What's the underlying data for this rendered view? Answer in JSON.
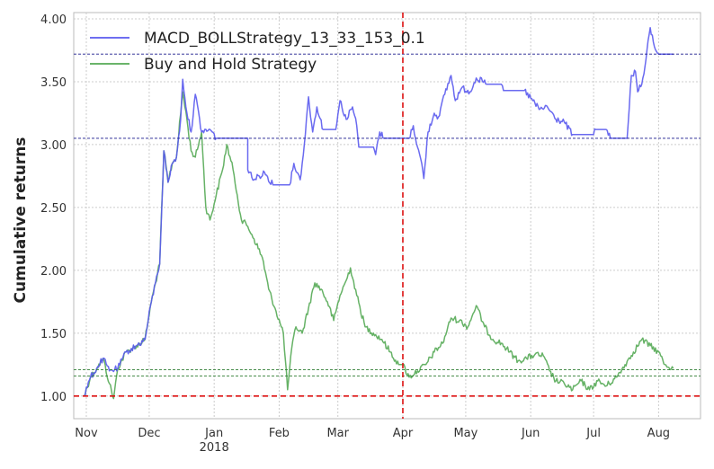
{
  "chart_data": {
    "type": "line",
    "title": "",
    "xlabel": "",
    "ylabel": "Cumulative returns",
    "ylim": [
      0.82,
      4.05
    ],
    "xlim": [
      "2017-10-26",
      "2018-08-21"
    ],
    "grid": true,
    "legend_position": "top-left",
    "x_ticks": [
      {
        "date": "2017-11-01",
        "label": "Nov"
      },
      {
        "date": "2017-12-01",
        "label": "Dec"
      },
      {
        "date": "2018-01-01",
        "label": "Jan",
        "sublabel": "2018"
      },
      {
        "date": "2018-02-01",
        "label": "Feb"
      },
      {
        "date": "2018-03-01",
        "label": "Mar"
      },
      {
        "date": "2018-04-01",
        "label": "Apr"
      },
      {
        "date": "2018-05-01",
        "label": "May"
      },
      {
        "date": "2018-06-01",
        "label": "Jun"
      },
      {
        "date": "2018-07-01",
        "label": "Jul"
      },
      {
        "date": "2018-08-01",
        "label": "Aug"
      }
    ],
    "y_ticks": [
      "1.00",
      "1.50",
      "2.00",
      "2.50",
      "3.00",
      "3.50",
      "4.00"
    ],
    "series": [
      {
        "name": "MACD_BOLLStrategy_13_33_153_0.1",
        "color": "#5a5aee",
        "points": [
          [
            "2017-10-31",
            1.0
          ],
          [
            "2017-11-03",
            1.15
          ],
          [
            "2017-11-06",
            1.22
          ],
          [
            "2017-11-09",
            1.3
          ],
          [
            "2017-11-12",
            1.2
          ],
          [
            "2017-11-16",
            1.22
          ],
          [
            "2017-11-20",
            1.35
          ],
          [
            "2017-11-25",
            1.4
          ],
          [
            "2017-11-29",
            1.45
          ],
          [
            "2017-12-02",
            1.75
          ],
          [
            "2017-12-04",
            1.9
          ],
          [
            "2017-12-06",
            2.05
          ],
          [
            "2017-12-08",
            2.95
          ],
          [
            "2017-12-10",
            2.7
          ],
          [
            "2017-12-12",
            2.85
          ],
          [
            "2017-12-14",
            2.9
          ],
          [
            "2017-12-16",
            3.2
          ],
          [
            "2017-12-17",
            3.52
          ],
          [
            "2017-12-19",
            3.25
          ],
          [
            "2017-12-21",
            3.1
          ],
          [
            "2017-12-23",
            3.4
          ],
          [
            "2017-12-26",
            3.1
          ],
          [
            "2017-12-30",
            3.12
          ],
          [
            "2018-01-02",
            3.05
          ],
          [
            "2018-01-17",
            3.05
          ],
          [
            "2018-01-17",
            2.8
          ],
          [
            "2018-01-20",
            2.72
          ],
          [
            "2018-01-25",
            2.78
          ],
          [
            "2018-01-29",
            2.68
          ],
          [
            "2018-02-06",
            2.68
          ],
          [
            "2018-02-08",
            2.85
          ],
          [
            "2018-02-11",
            2.72
          ],
          [
            "2018-02-13",
            3.0
          ],
          [
            "2018-02-15",
            3.38
          ],
          [
            "2018-02-17",
            3.1
          ],
          [
            "2018-02-19",
            3.3
          ],
          [
            "2018-02-22",
            3.12
          ],
          [
            "2018-02-28",
            3.12
          ],
          [
            "2018-03-02",
            3.35
          ],
          [
            "2018-03-05",
            3.2
          ],
          [
            "2018-03-08",
            3.3
          ],
          [
            "2018-03-10",
            3.15
          ],
          [
            "2018-03-11",
            2.98
          ],
          [
            "2018-03-18",
            2.98
          ],
          [
            "2018-03-19",
            2.92
          ],
          [
            "2018-03-21",
            3.1
          ],
          [
            "2018-03-23",
            3.05
          ],
          [
            "2018-04-04",
            3.05
          ],
          [
            "2018-04-06",
            3.15
          ],
          [
            "2018-04-08",
            2.98
          ],
          [
            "2018-04-10",
            2.85
          ],
          [
            "2018-04-11",
            2.73
          ],
          [
            "2018-04-13",
            3.1
          ],
          [
            "2018-04-16",
            3.25
          ],
          [
            "2018-04-18",
            3.22
          ],
          [
            "2018-04-21",
            3.4
          ],
          [
            "2018-04-24",
            3.55
          ],
          [
            "2018-04-26",
            3.35
          ],
          [
            "2018-04-29",
            3.45
          ],
          [
            "2018-05-03",
            3.42
          ],
          [
            "2018-05-06",
            3.53
          ],
          [
            "2018-05-11",
            3.48
          ],
          [
            "2018-05-18",
            3.48
          ],
          [
            "2018-05-19",
            3.43
          ],
          [
            "2018-05-29",
            3.43
          ],
          [
            "2018-06-02",
            3.35
          ],
          [
            "2018-06-05",
            3.28
          ],
          [
            "2018-06-09",
            3.3
          ],
          [
            "2018-06-13",
            3.2
          ],
          [
            "2018-06-17",
            3.18
          ],
          [
            "2018-06-21",
            3.08
          ],
          [
            "2018-07-01",
            3.08
          ],
          [
            "2018-07-02",
            3.12
          ],
          [
            "2018-07-07",
            3.12
          ],
          [
            "2018-07-09",
            3.05
          ],
          [
            "2018-07-17",
            3.05
          ],
          [
            "2018-07-19",
            3.55
          ],
          [
            "2018-07-21",
            3.58
          ],
          [
            "2018-07-22",
            3.42
          ],
          [
            "2018-07-24",
            3.48
          ],
          [
            "2018-07-26",
            3.68
          ],
          [
            "2018-07-28",
            3.93
          ],
          [
            "2018-07-30",
            3.78
          ],
          [
            "2018-08-01",
            3.72
          ],
          [
            "2018-08-08",
            3.72
          ]
        ]
      },
      {
        "name": "Buy and Hold Strategy",
        "color": "#55aa55",
        "points": [
          [
            "2017-10-31",
            1.0
          ],
          [
            "2017-11-03",
            1.15
          ],
          [
            "2017-11-06",
            1.22
          ],
          [
            "2017-11-09",
            1.3
          ],
          [
            "2017-11-12",
            1.1
          ],
          [
            "2017-11-14",
            0.98
          ],
          [
            "2017-11-16",
            1.22
          ],
          [
            "2017-11-20",
            1.35
          ],
          [
            "2017-11-25",
            1.4
          ],
          [
            "2017-11-29",
            1.45
          ],
          [
            "2017-12-02",
            1.75
          ],
          [
            "2017-12-04",
            1.9
          ],
          [
            "2017-12-06",
            2.05
          ],
          [
            "2017-12-08",
            2.95
          ],
          [
            "2017-12-10",
            2.7
          ],
          [
            "2017-12-12",
            2.85
          ],
          [
            "2017-12-14",
            2.9
          ],
          [
            "2017-12-17",
            3.42
          ],
          [
            "2017-12-19",
            3.2
          ],
          [
            "2017-12-21",
            2.95
          ],
          [
            "2017-12-23",
            2.9
          ],
          [
            "2017-12-26",
            3.1
          ],
          [
            "2017-12-28",
            2.5
          ],
          [
            "2017-12-30",
            2.4
          ],
          [
            "2018-01-02",
            2.6
          ],
          [
            "2018-01-05",
            2.8
          ],
          [
            "2018-01-07",
            3.0
          ],
          [
            "2018-01-10",
            2.8
          ],
          [
            "2018-01-12",
            2.6
          ],
          [
            "2018-01-14",
            2.4
          ],
          [
            "2018-01-17",
            2.35
          ],
          [
            "2018-01-20",
            2.25
          ],
          [
            "2018-01-24",
            2.1
          ],
          [
            "2018-01-27",
            1.85
          ],
          [
            "2018-01-30",
            1.7
          ],
          [
            "2018-02-03",
            1.5
          ],
          [
            "2018-02-05",
            1.05
          ],
          [
            "2018-02-07",
            1.38
          ],
          [
            "2018-02-09",
            1.55
          ],
          [
            "2018-02-12",
            1.5
          ],
          [
            "2018-02-15",
            1.7
          ],
          [
            "2018-02-18",
            1.9
          ],
          [
            "2018-02-21",
            1.85
          ],
          [
            "2018-02-24",
            1.75
          ],
          [
            "2018-02-27",
            1.6
          ],
          [
            "2018-03-02",
            1.8
          ],
          [
            "2018-03-05",
            1.92
          ],
          [
            "2018-03-07",
            2.02
          ],
          [
            "2018-03-10",
            1.8
          ],
          [
            "2018-03-14",
            1.55
          ],
          [
            "2018-03-18",
            1.5
          ],
          [
            "2018-03-22",
            1.45
          ],
          [
            "2018-03-26",
            1.35
          ],
          [
            "2018-03-30",
            1.25
          ],
          [
            "2018-04-01",
            1.25
          ],
          [
            "2018-04-04",
            1.15
          ],
          [
            "2018-04-08",
            1.2
          ],
          [
            "2018-04-12",
            1.25
          ],
          [
            "2018-04-16",
            1.35
          ],
          [
            "2018-04-20",
            1.42
          ],
          [
            "2018-04-24",
            1.62
          ],
          [
            "2018-04-28",
            1.6
          ],
          [
            "2018-05-02",
            1.55
          ],
          [
            "2018-05-06",
            1.72
          ],
          [
            "2018-05-10",
            1.55
          ],
          [
            "2018-05-14",
            1.45
          ],
          [
            "2018-05-18",
            1.42
          ],
          [
            "2018-05-22",
            1.35
          ],
          [
            "2018-05-26",
            1.28
          ],
          [
            "2018-05-30",
            1.3
          ],
          [
            "2018-06-03",
            1.33
          ],
          [
            "2018-06-07",
            1.32
          ],
          [
            "2018-06-10",
            1.2
          ],
          [
            "2018-06-13",
            1.12
          ],
          [
            "2018-06-17",
            1.1
          ],
          [
            "2018-06-21",
            1.05
          ],
          [
            "2018-06-25",
            1.12
          ],
          [
            "2018-06-29",
            1.05
          ],
          [
            "2018-07-03",
            1.12
          ],
          [
            "2018-07-07",
            1.08
          ],
          [
            "2018-07-12",
            1.15
          ],
          [
            "2018-07-16",
            1.25
          ],
          [
            "2018-07-20",
            1.35
          ],
          [
            "2018-07-24",
            1.45
          ],
          [
            "2018-07-28",
            1.4
          ],
          [
            "2018-08-01",
            1.35
          ],
          [
            "2018-08-04",
            1.25
          ],
          [
            "2018-08-08",
            1.22
          ]
        ]
      }
    ],
    "reference_lines": [
      {
        "orientation": "horizontal",
        "value": 3.72,
        "color": "#1a1a8c",
        "style": "dashed"
      },
      {
        "orientation": "horizontal",
        "value": 3.05,
        "color": "#1a1a8c",
        "style": "dashed"
      },
      {
        "orientation": "horizontal",
        "value": 1.21,
        "color": "#2e7d32",
        "style": "dashed"
      },
      {
        "orientation": "horizontal",
        "value": 1.16,
        "color": "#2e7d32",
        "style": "dashed"
      },
      {
        "orientation": "horizontal",
        "value": 1.0,
        "color": "#dd1111",
        "style": "dashed"
      },
      {
        "orientation": "vertical",
        "value": "2018-04-01",
        "color": "#dd1111",
        "style": "dashed"
      }
    ],
    "colors": {
      "grid": "#cccccc",
      "frame": "#bbbbbb",
      "background": "#ffffff"
    }
  }
}
